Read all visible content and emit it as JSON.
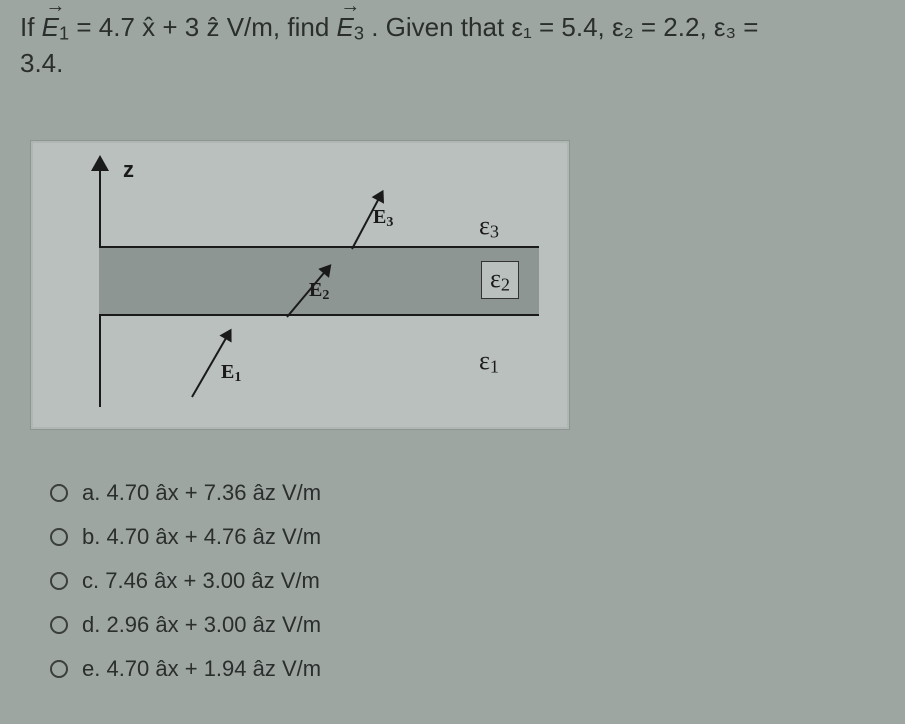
{
  "colors": {
    "page_bg": "#9ea6a2",
    "diagram_bg": "#b9c0bd",
    "slab_bg": "#8e9693",
    "text": "#2a2e2c",
    "line": "#1a1a1a"
  },
  "question": {
    "line1_pre": "If ",
    "E1_sym": "E",
    "E1_sub": "1",
    "eq": " = 4.7 x̂ + 3 ẑ V/m, find ",
    "E3_sym": "E",
    "E3_sub": "3",
    "given": ". Given that ε₁ = 5.4, ε₂ = 2.2, ε₃ =",
    "line2": "3.4."
  },
  "diagram": {
    "z_label": "z",
    "eps3": "ε",
    "eps3_sub": "3",
    "eps2": "ε",
    "eps2_sub": "2",
    "eps1": "ε",
    "eps1_sub": "1",
    "E1_label": "E",
    "E1_sub": "1",
    "E2_label": "E",
    "E2_sub": "2",
    "E3_label": "E",
    "E3_sub": "3"
  },
  "options": {
    "a": "a. 4.70 âx + 7.36  âz  V/m",
    "b": "b. 4.70 âx + 4.76 âz  V/m",
    "c": "c. 7.46 âx + 3.00  âz  V/m",
    "d": "d. 2.96 âx + 3.00  âz  V/m",
    "e": "e. 4.70 âx + 1.94 âz  V/m"
  }
}
